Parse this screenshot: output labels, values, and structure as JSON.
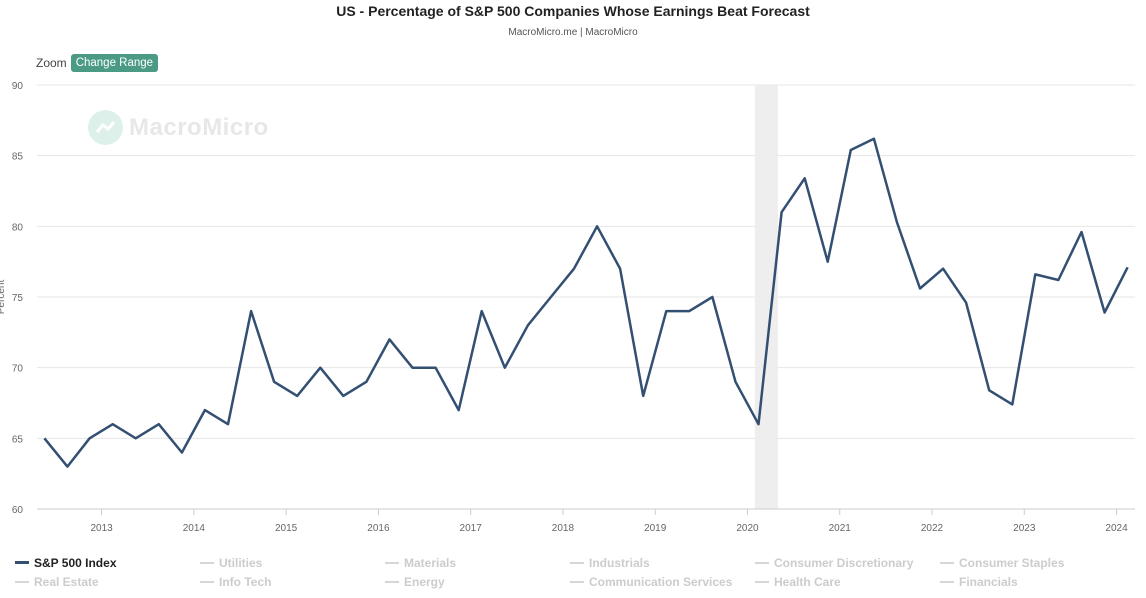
{
  "chart_data": {
    "type": "line",
    "title": "US - Percentage of S&P 500 Companies Whose Earnings Beat Forecast",
    "subtitle": "MacroMicro.me | MacroMicro",
    "ylabel": "Percent",
    "xlabel": "",
    "ylim": [
      60,
      90
    ],
    "yticks": [
      60,
      65,
      70,
      75,
      80,
      85,
      90
    ],
    "xticks": [
      "2013",
      "2014",
      "2015",
      "2016",
      "2017",
      "2018",
      "2019",
      "2020",
      "2021",
      "2022",
      "2023",
      "2024"
    ],
    "grid": "horizontal",
    "legend_position": "bottom",
    "recession_band": {
      "start": 2020.08,
      "end": 2020.33
    },
    "series": [
      {
        "name": "S&P 500 Index",
        "color": "#334f72",
        "x": [
          2012.38,
          2012.63,
          2012.87,
          2013.12,
          2013.37,
          2013.62,
          2013.87,
          2014.12,
          2014.37,
          2014.62,
          2014.87,
          2015.12,
          2015.37,
          2015.62,
          2015.87,
          2016.12,
          2016.37,
          2016.62,
          2016.87,
          2017.12,
          2017.37,
          2017.62,
          2017.87,
          2018.12,
          2018.37,
          2018.62,
          2018.87,
          2019.12,
          2019.37,
          2019.62,
          2019.87,
          2020.12,
          2020.37,
          2020.62,
          2020.87,
          2021.12,
          2021.37,
          2021.62,
          2021.87,
          2022.12,
          2022.37,
          2022.62,
          2022.87,
          2023.12,
          2023.37,
          2023.62,
          2023.87,
          2024.12
        ],
        "values": [
          65,
          63,
          65,
          66,
          65,
          66,
          64,
          67,
          66,
          74,
          69,
          68,
          70,
          68,
          69,
          72,
          70,
          70,
          67,
          74,
          70,
          73,
          75,
          77,
          80,
          77,
          68,
          74,
          74,
          75,
          69,
          66,
          81,
          83.4,
          77.5,
          85.4,
          86.2,
          80.3,
          75.6,
          77,
          74.6,
          68.4,
          67.4,
          76.6,
          76.2,
          79.6,
          73.9,
          77.1
        ]
      }
    ]
  },
  "toolbar": {
    "zoom_label": "Zoom",
    "range_button": "Change Range"
  },
  "watermark": "MacroMicro",
  "legend": {
    "rows": [
      [
        "S&P 500 Index",
        "Utilities",
        "Materials",
        "Industrials",
        "Consumer Discretionary",
        "Consumer Staples"
      ],
      [
        "Real Estate",
        "Info Tech",
        "Energy",
        "Communication Services",
        "Health Care",
        "Financials"
      ]
    ],
    "active": "S&P 500 Index"
  }
}
